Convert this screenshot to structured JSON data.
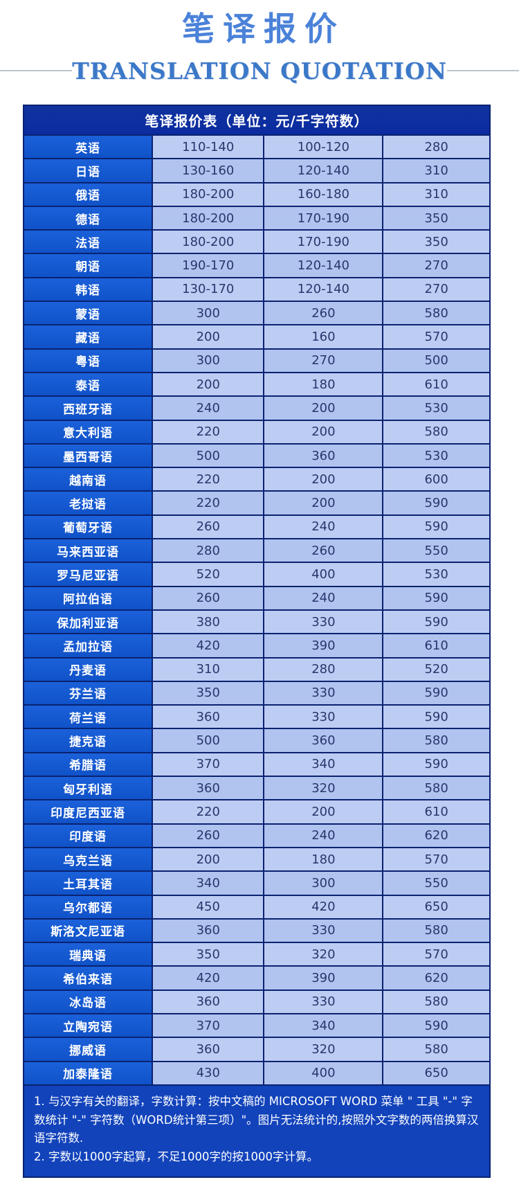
{
  "page": {
    "title": "笔译报价",
    "subtitle": "TRANSLATION QUOTATION"
  },
  "table": {
    "header": "笔译报价表（单位：元/千字符数）",
    "rows": [
      {
        "language": "英语",
        "values": [
          "110-140",
          "100-120",
          "280"
        ]
      },
      {
        "language": "日语",
        "values": [
          "130-160",
          "120-140",
          "310"
        ]
      },
      {
        "language": "俄语",
        "values": [
          "180-200",
          "160-180",
          "310"
        ]
      },
      {
        "language": "德语",
        "values": [
          "180-200",
          "170-190",
          "350"
        ]
      },
      {
        "language": "法语",
        "values": [
          "180-200",
          "170-190",
          "350"
        ]
      },
      {
        "language": "朝语",
        "values": [
          "190-170",
          "120-140",
          "270"
        ]
      },
      {
        "language": "韩语",
        "values": [
          "130-170",
          "120-140",
          "270"
        ]
      },
      {
        "language": "蒙语",
        "values": [
          "300",
          "260",
          "580"
        ]
      },
      {
        "language": "藏语",
        "values": [
          "200",
          "160",
          "570"
        ]
      },
      {
        "language": "粤语",
        "values": [
          "300",
          "270",
          "500"
        ]
      },
      {
        "language": "泰语",
        "values": [
          "200",
          "180",
          "610"
        ]
      },
      {
        "language": "西班牙语",
        "values": [
          "240",
          "200",
          "530"
        ]
      },
      {
        "language": "意大利语",
        "values": [
          "220",
          "200",
          "580"
        ]
      },
      {
        "language": "墨西哥语",
        "values": [
          "500",
          "360",
          "530"
        ]
      },
      {
        "language": "越南语",
        "values": [
          "220",
          "200",
          "600"
        ]
      },
      {
        "language": "老挝语",
        "values": [
          "220",
          "200",
          "590"
        ]
      },
      {
        "language": "葡萄牙语",
        "values": [
          "260",
          "240",
          "590"
        ]
      },
      {
        "language": "马来西亚语",
        "values": [
          "280",
          "260",
          "550"
        ]
      },
      {
        "language": "罗马尼亚语",
        "values": [
          "520",
          "400",
          "530"
        ]
      },
      {
        "language": "阿拉伯语",
        "values": [
          "260",
          "240",
          "590"
        ]
      },
      {
        "language": "保加利亚语",
        "values": [
          "380",
          "330",
          "590"
        ]
      },
      {
        "language": "孟加拉语",
        "values": [
          "420",
          "390",
          "610"
        ]
      },
      {
        "language": "丹麦语",
        "values": [
          "310",
          "280",
          "520"
        ]
      },
      {
        "language": "芬兰语",
        "values": [
          "350",
          "330",
          "590"
        ]
      },
      {
        "language": "荷兰语",
        "values": [
          "360",
          "330",
          "590"
        ]
      },
      {
        "language": "捷克语",
        "values": [
          "500",
          "360",
          "580"
        ]
      },
      {
        "language": "希腊语",
        "values": [
          "370",
          "340",
          "590"
        ]
      },
      {
        "language": "匈牙利语",
        "values": [
          "360",
          "320",
          "580"
        ]
      },
      {
        "language": "印度尼西亚语",
        "values": [
          "220",
          "200",
          "610"
        ]
      },
      {
        "language": "印度语",
        "values": [
          "260",
          "240",
          "620"
        ]
      },
      {
        "language": "乌克兰语",
        "values": [
          "200",
          "180",
          "570"
        ]
      },
      {
        "language": "土耳其语",
        "values": [
          "340",
          "300",
          "550"
        ]
      },
      {
        "language": "乌尔都语",
        "values": [
          "450",
          "420",
          "650"
        ]
      },
      {
        "language": "斯洛文尼亚语",
        "values": [
          "360",
          "330",
          "580"
        ]
      },
      {
        "language": "瑞典语",
        "values": [
          "350",
          "320",
          "570"
        ]
      },
      {
        "language": "希伯来语",
        "values": [
          "420",
          "390",
          "620"
        ]
      },
      {
        "language": "冰岛语",
        "values": [
          "360",
          "330",
          "580"
        ]
      },
      {
        "language": "立陶宛语",
        "values": [
          "370",
          "340",
          "590"
        ]
      },
      {
        "language": "挪威语",
        "values": [
          "360",
          "320",
          "580"
        ]
      },
      {
        "language": "加泰隆语",
        "values": [
          "430",
          "400",
          "650"
        ]
      }
    ]
  },
  "notes": [
    "1. 与汉字有关的翻译，字数计算：按中文稿的 MICROSOFT WORD 菜单 \" 工具 \"-\" 字数统计 \"-\" 字符数（WORD统计第三项）\"。图片无法统计的,按照外文字数的两倍换算汉语字符数.",
    "2. 字数以1000字起算，不足1000字的按1000字计算。"
  ],
  "colors": {
    "title_blue": "#4b82d9",
    "subtitle_blue": "#3b78c8",
    "header_navy": "#0d2fa2",
    "language_cell_blue": "#1659d2",
    "row_light_a": "#bdccf3",
    "row_light_b": "#b1c3ef",
    "border_navy": "#0a2270",
    "notes_bg": "#1243bb",
    "value_text": "#27376c"
  }
}
